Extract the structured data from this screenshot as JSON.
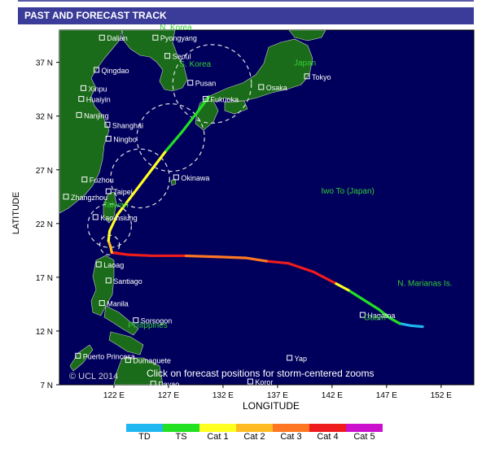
{
  "header": {
    "title": "PAST AND FORECAST TRACK"
  },
  "axes": {
    "ylabel": "LATITUDE",
    "xlabel": "LONGITUDE",
    "lat_ticks": [
      "37 N",
      "32 N",
      "27 N",
      "22 N",
      "17 N",
      "12 N",
      "7 N"
    ],
    "lon_ticks": [
      "122 E",
      "127 E",
      "132 E",
      "137 E",
      "142 E",
      "147 E",
      "152 E"
    ]
  },
  "map": {
    "bounds": {
      "lon_min": 117.0,
      "lon_max": 155.0,
      "lat_min": 7.0,
      "lat_max": 40.0
    },
    "ocean_color": "#00005c",
    "land_color": "#1a6b1a",
    "copyright": "© UCL 2014",
    "notice": "Click on forecast positions for storm-centered zooms",
    "cities": [
      {
        "name": "Dalian",
        "lon": 120.9,
        "lat": 39.3
      },
      {
        "name": "Pyongyang",
        "lon": 125.8,
        "lat": 39.3
      },
      {
        "name": "Seoul",
        "lon": 126.9,
        "lat": 37.6
      },
      {
        "name": "Qingdao",
        "lon": 120.4,
        "lat": 36.3
      },
      {
        "name": "Xinpu",
        "lon": 119.2,
        "lat": 34.6
      },
      {
        "name": "Pusan",
        "lon": 129.0,
        "lat": 35.1
      },
      {
        "name": "Osaka",
        "lon": 135.5,
        "lat": 34.7
      },
      {
        "name": "Tokyo",
        "lon": 139.7,
        "lat": 35.7
      },
      {
        "name": "Fukuoka",
        "lon": 130.4,
        "lat": 33.6
      },
      {
        "name": "Huaiyin",
        "lon": 119.0,
        "lat": 33.6
      },
      {
        "name": "Nanjing",
        "lon": 118.8,
        "lat": 32.1
      },
      {
        "name": "Shanghai",
        "lon": 121.4,
        "lat": 31.2
      },
      {
        "name": "Ningbo",
        "lon": 121.5,
        "lat": 29.9
      },
      {
        "name": "Okinawa",
        "lon": 127.7,
        "lat": 26.3
      },
      {
        "name": "Fuzhou",
        "lon": 119.3,
        "lat": 26.1
      },
      {
        "name": "Taipei",
        "lon": 121.5,
        "lat": 25.0
      },
      {
        "name": "Zhangzhou",
        "lon": 117.6,
        "lat": 24.5
      },
      {
        "name": "Kao-hsiung",
        "lon": 120.3,
        "lat": 22.6
      },
      {
        "name": "Laoag",
        "lon": 120.6,
        "lat": 18.2
      },
      {
        "name": "Santiago",
        "lon": 121.5,
        "lat": 16.7
      },
      {
        "name": "Manila",
        "lon": 120.9,
        "lat": 14.6
      },
      {
        "name": "Sorsogon",
        "lon": 124.0,
        "lat": 13.0
      },
      {
        "name": "Puerto Princesa",
        "lon": 118.7,
        "lat": 9.7
      },
      {
        "name": "Dumaguete",
        "lon": 123.3,
        "lat": 9.3
      },
      {
        "name": "Davao",
        "lon": 125.6,
        "lat": 7.1
      },
      {
        "name": "Hagatna",
        "lon": 144.8,
        "lat": 13.5
      },
      {
        "name": "Yap",
        "lon": 138.1,
        "lat": 9.5
      },
      {
        "name": "Koror",
        "lon": 134.5,
        "lat": 7.3
      }
    ],
    "regions": [
      {
        "name": "N. Korea",
        "lon": 126.2,
        "lat": 40.0
      },
      {
        "name": "S. Korea",
        "lon": 128.0,
        "lat": 36.6
      },
      {
        "name": "Japan",
        "lon": 138.5,
        "lat": 36.7
      },
      {
        "name": "Taiwan",
        "lon": 121.0,
        "lat": 23.5
      },
      {
        "name": "Philippines",
        "lon": 123.3,
        "lat": 12.3
      },
      {
        "name": "Iwo To (Japan)",
        "lon": 141.0,
        "lat": 24.8
      },
      {
        "name": "N. Marianas Is.",
        "lon": 148.0,
        "lat": 16.2
      },
      {
        "name": "Guam",
        "lon": 144.9,
        "lat": 13.0
      }
    ]
  },
  "track": {
    "points": [
      {
        "lon": 150.3,
        "lat": 12.4,
        "cat": "TD"
      },
      {
        "lon": 149.2,
        "lat": 12.5,
        "cat": "TD"
      },
      {
        "lon": 148.2,
        "lat": 12.7,
        "cat": "TD"
      },
      {
        "lon": 147.3,
        "lat": 13.2,
        "cat": "TS"
      },
      {
        "lon": 146.3,
        "lat": 14.0,
        "cat": "TS"
      },
      {
        "lon": 144.9,
        "lat": 14.9,
        "cat": "TS"
      },
      {
        "lon": 143.5,
        "lat": 15.8,
        "cat": "TS"
      },
      {
        "lon": 142.2,
        "lat": 16.5,
        "cat": "Cat 1"
      },
      {
        "lon": 140.3,
        "lat": 17.5,
        "cat": "Cat 4"
      },
      {
        "lon": 138.0,
        "lat": 18.3,
        "cat": "Cat 4"
      },
      {
        "lon": 136.0,
        "lat": 18.5,
        "cat": "Cat 4"
      },
      {
        "lon": 134.1,
        "lat": 18.8,
        "cat": "Cat 3"
      },
      {
        "lon": 131.5,
        "lat": 18.9,
        "cat": "Cat 3"
      },
      {
        "lon": 128.4,
        "lat": 19.0,
        "cat": "Cat 3"
      },
      {
        "lon": 125.5,
        "lat": 19.0,
        "cat": "Cat 4"
      },
      {
        "lon": 123.3,
        "lat": 19.1,
        "cat": "Cat 4"
      },
      {
        "lon": 121.8,
        "lat": 19.3,
        "cat": "Cat 4"
      },
      {
        "lon": 121.7,
        "lat": 19.8,
        "cat": "Cat 2"
      },
      {
        "lon": 121.5,
        "lat": 20.4,
        "cat": "Cat 2"
      },
      {
        "lon": 121.6,
        "lat": 21.3,
        "cat": "Cat 1"
      },
      {
        "lon": 122.3,
        "lat": 22.8,
        "cat": "Cat 1"
      },
      {
        "lon": 123.8,
        "lat": 24.8,
        "cat": "Cat 1"
      },
      {
        "lon": 125.3,
        "lat": 26.8,
        "cat": "Cat 1"
      },
      {
        "lon": 126.8,
        "lat": 28.8,
        "cat": "Cat 1"
      },
      {
        "lon": 128.3,
        "lat": 30.6,
        "cat": "TS"
      },
      {
        "lon": 129.6,
        "lat": 32.3,
        "cat": "TS"
      },
      {
        "lon": 130.7,
        "lat": 33.8,
        "cat": "TS"
      }
    ],
    "uncertainty_circles": [
      {
        "lon": 121.6,
        "lat": 20.0,
        "r_deg": 0.9
      },
      {
        "lon": 121.6,
        "lat": 21.8,
        "r_deg": 2.0
      },
      {
        "lon": 124.4,
        "lat": 26.2,
        "r_deg": 2.7
      },
      {
        "lon": 127.2,
        "lat": 30.0,
        "r_deg": 3.1
      },
      {
        "lon": 131.0,
        "lat": 35.0,
        "r_deg": 3.6
      }
    ]
  },
  "legend": {
    "items": [
      {
        "label": "TD",
        "color": "#1fb8f0"
      },
      {
        "label": "TS",
        "color": "#22e022"
      },
      {
        "label": "Cat 1",
        "color": "#ffff22"
      },
      {
        "label": "Cat 2",
        "color": "#ffbb22"
      },
      {
        "label": "Cat 3",
        "color": "#ff7722"
      },
      {
        "label": "Cat 4",
        "color": "#ee1c1c"
      },
      {
        "label": "Cat 5",
        "color": "#cc11cc"
      }
    ]
  }
}
